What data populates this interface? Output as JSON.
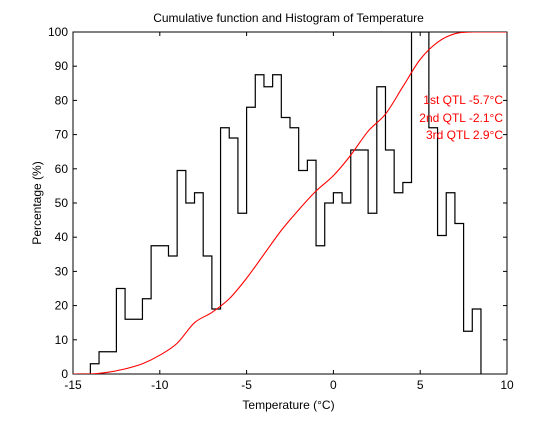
{
  "chart_data": {
    "type": "line",
    "title": "Cumulative function and Histogram of Temperature",
    "xlabel": "Temperature (°C)",
    "ylabel": "Percentage (%)",
    "xlim": [
      -15,
      10
    ],
    "ylim": [
      0,
      100
    ],
    "xticks": [
      -15,
      -10,
      -5,
      0,
      5,
      10
    ],
    "yticks": [
      0,
      10,
      20,
      30,
      40,
      50,
      60,
      70,
      80,
      90,
      100
    ],
    "grid": false,
    "annotations": [
      {
        "text": "1st QTL -5.7°C"
      },
      {
        "text": "2nd QTL -2.1°C"
      },
      {
        "text": "3rd QTL  2.9°C"
      }
    ],
    "histogram": {
      "color": "#000000",
      "steps": [
        [
          -14.8,
          0
        ],
        [
          -14.0,
          3
        ],
        [
          -13.5,
          6.5
        ],
        [
          -12.5,
          25
        ],
        [
          -12.0,
          16
        ],
        [
          -11.0,
          22
        ],
        [
          -10.5,
          37.5
        ],
        [
          -9.5,
          34.5
        ],
        [
          -9.0,
          59.5
        ],
        [
          -8.5,
          50
        ],
        [
          -8.0,
          53
        ],
        [
          -7.5,
          34.5
        ],
        [
          -7.0,
          19
        ],
        [
          -6.5,
          72
        ],
        [
          -6.0,
          69
        ],
        [
          -5.5,
          47
        ],
        [
          -5.0,
          78
        ],
        [
          -4.5,
          87.5
        ],
        [
          -4.0,
          84
        ],
        [
          -3.5,
          87.5
        ],
        [
          -3.0,
          75
        ],
        [
          -2.5,
          72
        ],
        [
          -2.0,
          59.5
        ],
        [
          -1.5,
          62.5
        ],
        [
          -1.0,
          37.5
        ],
        [
          -0.5,
          50
        ],
        [
          0.0,
          53
        ],
        [
          0.5,
          50
        ],
        [
          1.0,
          65.5
        ],
        [
          2.0,
          47
        ],
        [
          2.5,
          84
        ],
        [
          3.0,
          65.5
        ],
        [
          3.5,
          53
        ],
        [
          4.0,
          56
        ],
        [
          4.5,
          100
        ],
        [
          5.0,
          100
        ],
        [
          5.5,
          72
        ],
        [
          6.0,
          40.5
        ],
        [
          6.5,
          53
        ],
        [
          7.0,
          44
        ],
        [
          7.5,
          12.5
        ],
        [
          8.0,
          19
        ],
        [
          8.5,
          0
        ]
      ],
      "end_x": 8.5
    },
    "cumulative": {
      "color": "#ff0000",
      "x": [
        -15,
        -14,
        -13,
        -12,
        -11,
        -10,
        -9,
        -8,
        -7,
        -6,
        -5,
        -4,
        -3,
        -2,
        -1,
        0,
        1,
        2,
        3,
        4,
        5,
        6,
        7,
        8,
        9,
        10
      ],
      "y": [
        0,
        0,
        0.5,
        1.5,
        3,
        5.5,
        9,
        15,
        18,
        22,
        28,
        35,
        42,
        48,
        53.5,
        58,
        64,
        71,
        76,
        84,
        92,
        97,
        99.5,
        100,
        100,
        100
      ]
    }
  }
}
